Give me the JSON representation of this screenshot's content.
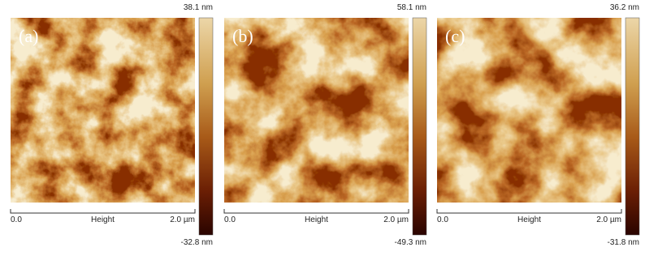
{
  "panels": [
    {
      "label": "(a)",
      "scale_max": "38.1 nm",
      "scale_min": "-32.8 nm",
      "axis_start": "0.0",
      "axis_title": "Height",
      "axis_end": "2.0 µm"
    },
    {
      "label": "(b)",
      "scale_max": "58.1 nm",
      "scale_min": "-49.3 nm",
      "axis_start": "0.0",
      "axis_title": "Height",
      "axis_end": "2.0 µm"
    },
    {
      "label": "(c)",
      "scale_max": "36.2 nm",
      "scale_min": "-31.8 nm",
      "axis_start": "0.0",
      "axis_title": "Height",
      "axis_end": "2.0 µm"
    }
  ]
}
